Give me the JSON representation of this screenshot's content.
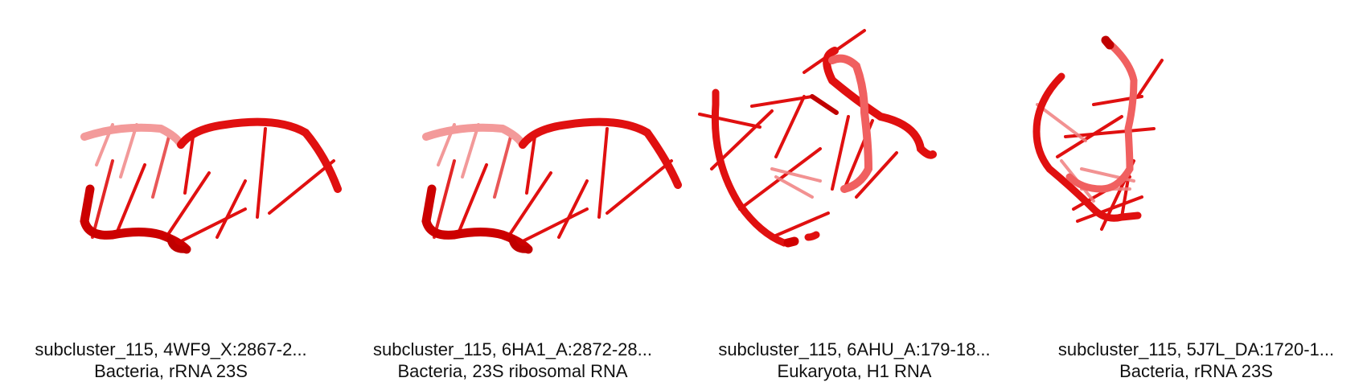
{
  "structures": [
    {
      "title": "subcluster_115, 4WF9_X:2867-2...",
      "subtitle": "Bacteria, rRNA 23S"
    },
    {
      "title": "subcluster_115, 6HA1_A:2872-28...",
      "subtitle": "Bacteria, 23S ribosomal RNA"
    },
    {
      "title": "subcluster_115, 6AHU_A:179-18...",
      "subtitle": "Eukaryota, H1 RNA"
    },
    {
      "title": "subcluster_115, 5J7L_DA:1720-1...",
      "subtitle": "Bacteria, rRNA 23S"
    }
  ],
  "colors": {
    "backbone": "#e01010",
    "backbone_light": "#f08080",
    "caption_text": "#111111"
  }
}
